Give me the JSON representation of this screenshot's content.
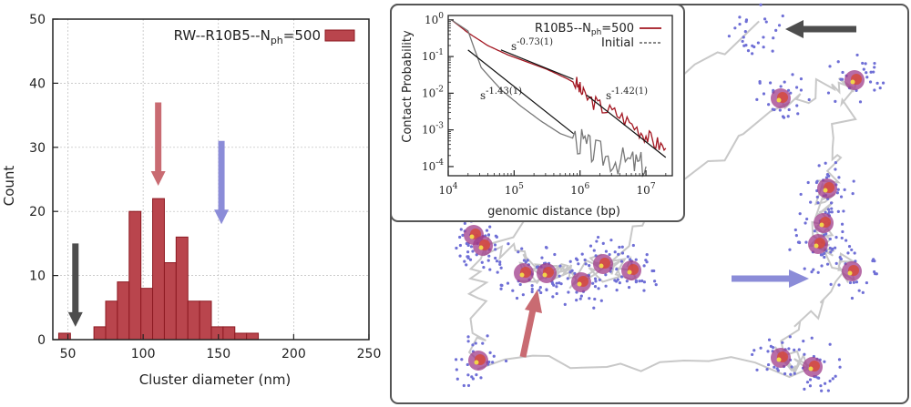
{
  "chart_data": [
    {
      "type": "bar",
      "title": "",
      "xlabel": "Cluster diameter (nm)",
      "ylabel": "Count",
      "xlim": [
        40,
        250
      ],
      "ylim": [
        0,
        50
      ],
      "xticks": [
        "50",
        "100",
        "150",
        "200",
        "250"
      ],
      "yticks": [
        "0",
        "10",
        "20",
        "30",
        "40",
        "50"
      ],
      "bin_width": 7.8,
      "series": [
        {
          "name": "RW--R10B5--N",
          "name_sub": "ph",
          "name_suffix": "=500",
          "bins": [
            {
              "x": 43.9,
              "v": 1
            },
            {
              "x": 67.3,
              "v": 2
            },
            {
              "x": 75.1,
              "v": 6
            },
            {
              "x": 82.9,
              "v": 9
            },
            {
              "x": 90.7,
              "v": 20
            },
            {
              "x": 98.5,
              "v": 8
            },
            {
              "x": 106.3,
              "v": 22
            },
            {
              "x": 114.1,
              "v": 12
            },
            {
              "x": 121.9,
              "v": 16
            },
            {
              "x": 129.7,
              "v": 6
            },
            {
              "x": 137.5,
              "v": 6
            },
            {
              "x": 145.3,
              "v": 2
            },
            {
              "x": 153.1,
              "v": 2
            },
            {
              "x": 160.9,
              "v": 1
            },
            {
              "x": 168.7,
              "v": 1
            }
          ]
        }
      ],
      "arrows": [
        {
          "color": "#c96b72",
          "x": 110,
          "y_top": 37,
          "y_bottom": 24
        },
        {
          "color": "#8b8cd8",
          "x": 152,
          "y_top": 31,
          "y_bottom": 18
        },
        {
          "color": "#4d4d4d",
          "x": 55,
          "y_top": 15,
          "y_bottom": 2
        }
      ],
      "grid": true,
      "legend": "top-right"
    },
    {
      "type": "line",
      "title": "",
      "xlabel": "genomic distance (bp)",
      "ylabel": "Contact Probability",
      "xscale": "log",
      "yscale": "log",
      "xlim_exp": [
        4,
        7.4
      ],
      "ylim_exp": [
        -4.25,
        0.12
      ],
      "xticks": [
        {
          "base": "10",
          "exp": "4"
        },
        {
          "base": "10",
          "exp": "5"
        },
        {
          "base": "10",
          "exp": "6"
        },
        {
          "base": "10",
          "exp": "7"
        }
      ],
      "yticks": [
        {
          "base": "10",
          "exp": "0"
        },
        {
          "base": "10",
          "exp": "-1"
        },
        {
          "base": "10",
          "exp": "-2"
        },
        {
          "base": "10",
          "exp": "-3"
        },
        {
          "base": "10",
          "exp": "-4"
        }
      ],
      "series": [
        {
          "name": "R10B5--N",
          "name_sub": "ph",
          "name_suffix": "=500",
          "color": "#a31621",
          "log_points": [
            [
              4.05,
              0.0
            ],
            [
              4.3,
              -0.35
            ],
            [
              4.6,
              -0.7
            ],
            [
              4.9,
              -0.95
            ],
            [
              5.2,
              -1.15
            ],
            [
              5.5,
              -1.35
            ],
            [
              5.8,
              -1.6
            ],
            [
              5.95,
              -1.75
            ],
            [
              6.05,
              -2.05
            ],
            [
              6.3,
              -2.35
            ],
            [
              6.6,
              -2.6
            ],
            [
              6.9,
              -3.0
            ],
            [
              7.1,
              -3.3
            ],
            [
              7.3,
              -3.5
            ]
          ]
        },
        {
          "name": "Initial",
          "color": "#777777",
          "log_points": [
            [
              4.05,
              0.0
            ],
            [
              4.3,
              -0.3
            ],
            [
              4.5,
              -1.3
            ],
            [
              4.8,
              -1.9
            ],
            [
              5.1,
              -2.35
            ],
            [
              5.4,
              -2.75
            ],
            [
              5.7,
              -3.1
            ],
            [
              6.0,
              -3.3
            ],
            [
              6.2,
              -3.6
            ],
            [
              6.5,
              -3.8
            ],
            [
              6.8,
              -3.9
            ],
            [
              7.0,
              -4.0
            ]
          ]
        }
      ],
      "fits": [
        {
          "label_base": "s",
          "label_exp": "-0.73(1)",
          "log_from": [
            4.8,
            -0.82
          ],
          "log_to": [
            5.9,
            -1.62
          ]
        },
        {
          "label_base": "s",
          "label_exp": "-1.43(1)",
          "log_from": [
            4.3,
            -0.82
          ],
          "log_to": [
            5.9,
            -3.1
          ]
        },
        {
          "label_base": "s",
          "label_exp": "-1.42(1)",
          "log_from": [
            6.1,
            -2.05
          ],
          "log_to": [
            7.3,
            -3.75
          ]
        }
      ],
      "legend": "top-right"
    }
  ],
  "image_panel": {
    "description_free": true,
    "arrows": [
      {
        "color": "#4d4d4d",
        "direction": "left"
      },
      {
        "color": "#8b8cd8",
        "direction": "right"
      },
      {
        "color": "#c96b72",
        "direction": "up"
      }
    ]
  }
}
